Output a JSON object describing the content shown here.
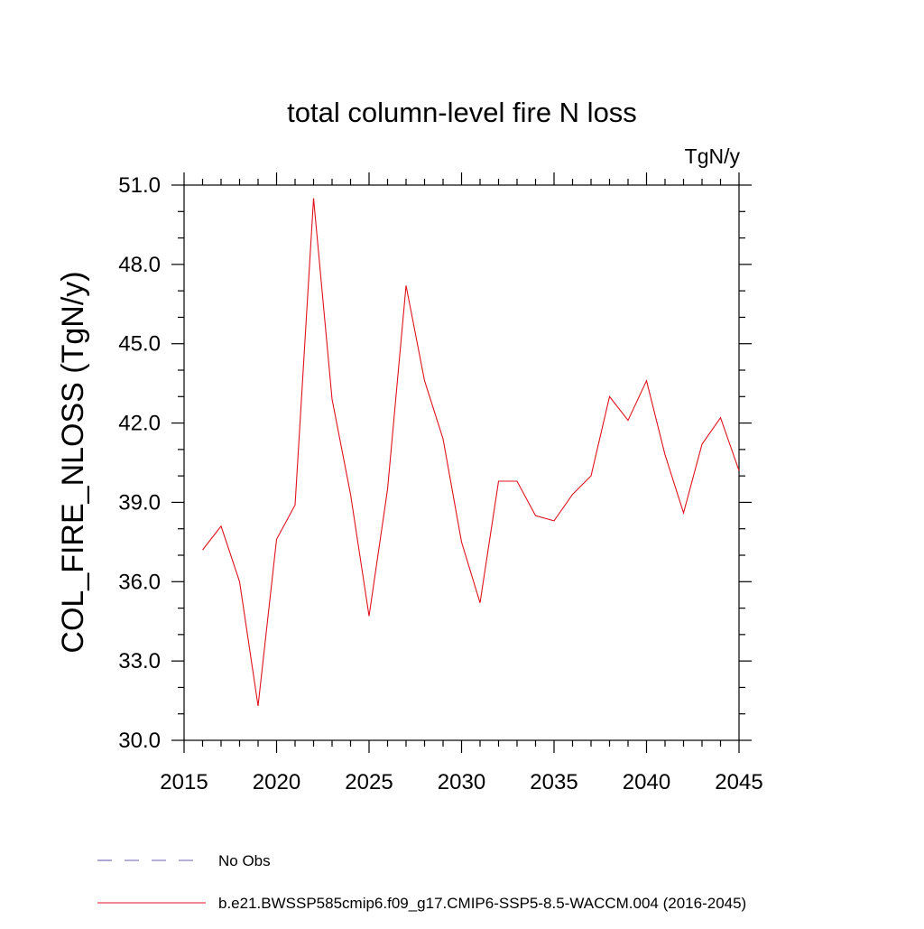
{
  "chart_data": {
    "type": "line",
    "title": "total column-level fire N loss",
    "units_label": "TgN/y",
    "ylabel": "COL_FIRE_NLOSS  (TgN/y)",
    "xlabel": "",
    "xlim": [
      2015,
      2045
    ],
    "ylim": [
      30.0,
      51.0
    ],
    "x_ticks": [
      2015,
      2020,
      2025,
      2030,
      2035,
      2040,
      2045
    ],
    "y_ticks": [
      "30.0",
      "33.0",
      "36.0",
      "39.0",
      "42.0",
      "45.0",
      "48.0",
      "51.0"
    ],
    "grid": false,
    "legend_placement": "bottom",
    "series": [
      {
        "name": "No Obs",
        "color": "#6b5fb5",
        "style": "dashed",
        "x": [],
        "y": []
      },
      {
        "name": "b.e21.BWSSP585cmip6.f09_g17.CMIP6-SSP5-8.5-WACCM.004 (2016-2045)",
        "color": "#e0121d",
        "style": "solid",
        "x": [
          2016,
          2017,
          2018,
          2019,
          2020,
          2021,
          2022,
          2023,
          2024,
          2025,
          2026,
          2027,
          2028,
          2029,
          2030,
          2031,
          2032,
          2033,
          2034,
          2035,
          2036,
          2037,
          2038,
          2039,
          2040,
          2041,
          2042,
          2043,
          2044,
          2045
        ],
        "y": [
          37.2,
          38.1,
          36.0,
          31.3,
          37.6,
          38.9,
          50.5,
          42.9,
          39.3,
          34.7,
          39.5,
          47.2,
          43.6,
          41.4,
          37.5,
          35.2,
          39.8,
          39.8,
          38.5,
          38.3,
          39.3,
          40.0,
          43.0,
          42.1,
          43.6,
          40.8,
          38.6,
          41.2,
          42.2,
          40.2
        ]
      }
    ]
  }
}
